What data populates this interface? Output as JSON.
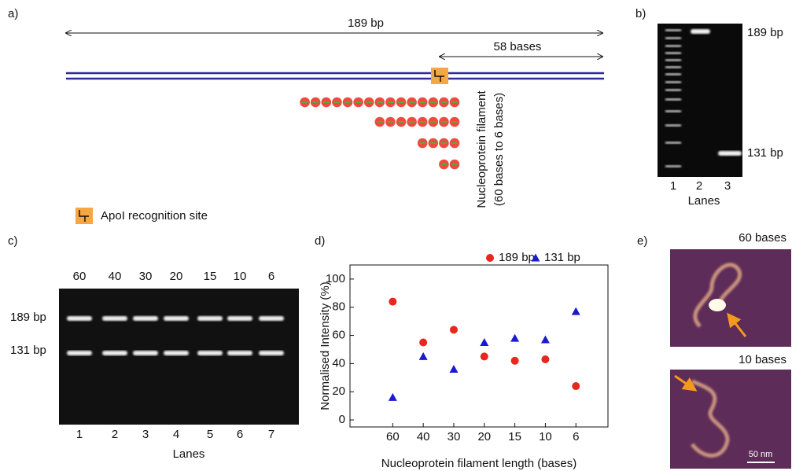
{
  "panels": {
    "a": {
      "label": "a)",
      "length_label": "189 bp",
      "segment_label": "58 bases",
      "filament_label": "Nucleoprotein filament",
      "filament_range": "(60 bases to 6 bases)",
      "legend": "ApoI recognition site"
    },
    "b": {
      "label": "b)",
      "band_labels": [
        "189 bp",
        "131 bp"
      ],
      "lanes": [
        "1",
        "2",
        "3"
      ],
      "lanes_title": "Lanes"
    },
    "c": {
      "label": "c)",
      "lengths": [
        "60",
        "40",
        "30",
        "20",
        "15",
        "10",
        "6"
      ],
      "band_labels": [
        "189 bp",
        "131 bp"
      ],
      "lanes": [
        "1",
        "2",
        "3",
        "4",
        "5",
        "6",
        "7"
      ],
      "lanes_title": "Lanes"
    },
    "d": {
      "label": "d)"
    },
    "e": {
      "label": "e)",
      "image_labels": [
        "60 bases",
        "10 bases"
      ],
      "scale_bar": "50 nm"
    }
  },
  "chart_data": {
    "type": "scatter",
    "x_label": "Nucleoprotein filament length (bases)",
    "y_label": "Normalised Intensity (%)",
    "categories": [
      "60",
      "40",
      "30",
      "20",
      "15",
      "10",
      "6"
    ],
    "series": [
      {
        "name": "189 bp",
        "color": "#e8271e",
        "marker": "circle",
        "values": [
          84,
          55,
          64,
          45,
          42,
          43,
          24
        ]
      },
      {
        "name": "131 bp",
        "color": "#1a1ad0",
        "marker": "triangle",
        "values": [
          16,
          45,
          36,
          55,
          58,
          57,
          77
        ]
      }
    ],
    "ylim": [
      -5,
      110
    ],
    "yticks": [
      0,
      20,
      40,
      60,
      80,
      100
    ],
    "legend": "top-right"
  }
}
